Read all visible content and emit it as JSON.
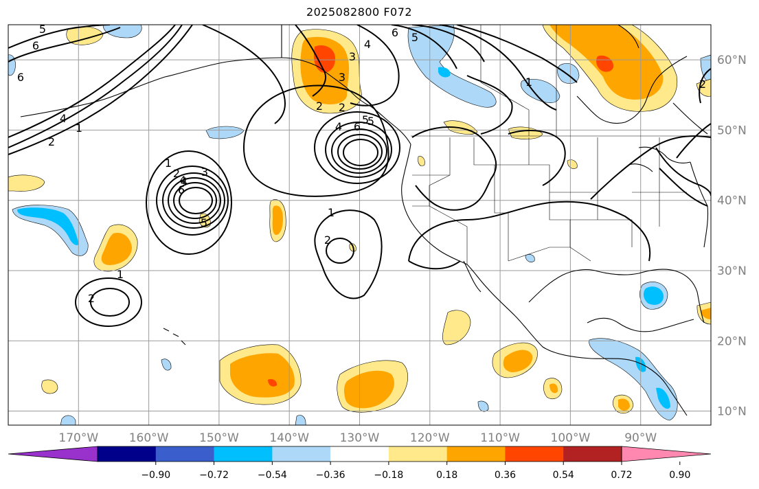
{
  "title": "2025082800 F072",
  "map": {
    "lon_range": [
      -180,
      -80
    ],
    "lat_range": [
      8,
      65
    ],
    "lon_labels": [
      {
        "text": "170°W",
        "lon": -170
      },
      {
        "text": "160°W",
        "lon": -160
      },
      {
        "text": "150°W",
        "lon": -150
      },
      {
        "text": "140°W",
        "lon": -140
      },
      {
        "text": "130°W",
        "lon": -130
      },
      {
        "text": "120°W",
        "lon": -120
      },
      {
        "text": "110°W",
        "lon": -110
      },
      {
        "text": "100°W",
        "lon": -100
      },
      {
        "text": "90°W",
        "lon": -90
      }
    ],
    "lat_labels": [
      {
        "text": "60°N",
        "lat": 60
      },
      {
        "text": "50°N",
        "lat": 50
      },
      {
        "text": "40°N",
        "lat": 40
      },
      {
        "text": "30°N",
        "lat": 30
      },
      {
        "text": "20°N",
        "lat": 20
      },
      {
        "text": "10°N",
        "lat": 10
      }
    ],
    "contour_labels": [
      "5",
      "6",
      "6",
      "5",
      "4",
      "3",
      "6",
      "5",
      "4",
      "3",
      "2",
      "1",
      "2",
      "4",
      "6",
      "1",
      "2",
      "3",
      "4",
      "5",
      "6",
      "1",
      "2",
      "1",
      "2",
      "4",
      "6",
      "5",
      "2",
      "1",
      "2"
    ]
  },
  "colorbar": {
    "tick_labels": [
      "−0.90",
      "−0.72",
      "−0.54",
      "−0.36",
      "−0.18",
      "0.18",
      "0.36",
      "0.54",
      "0.72",
      "0.90"
    ],
    "colors": [
      "#9932cc",
      "#00008b",
      "#3a5fcd",
      "#00bfff",
      "#add8f7",
      "#ffffff",
      "#ffe98a",
      "#ffa500",
      "#ff4500",
      "#b22222",
      "#ff88b0"
    ]
  }
}
